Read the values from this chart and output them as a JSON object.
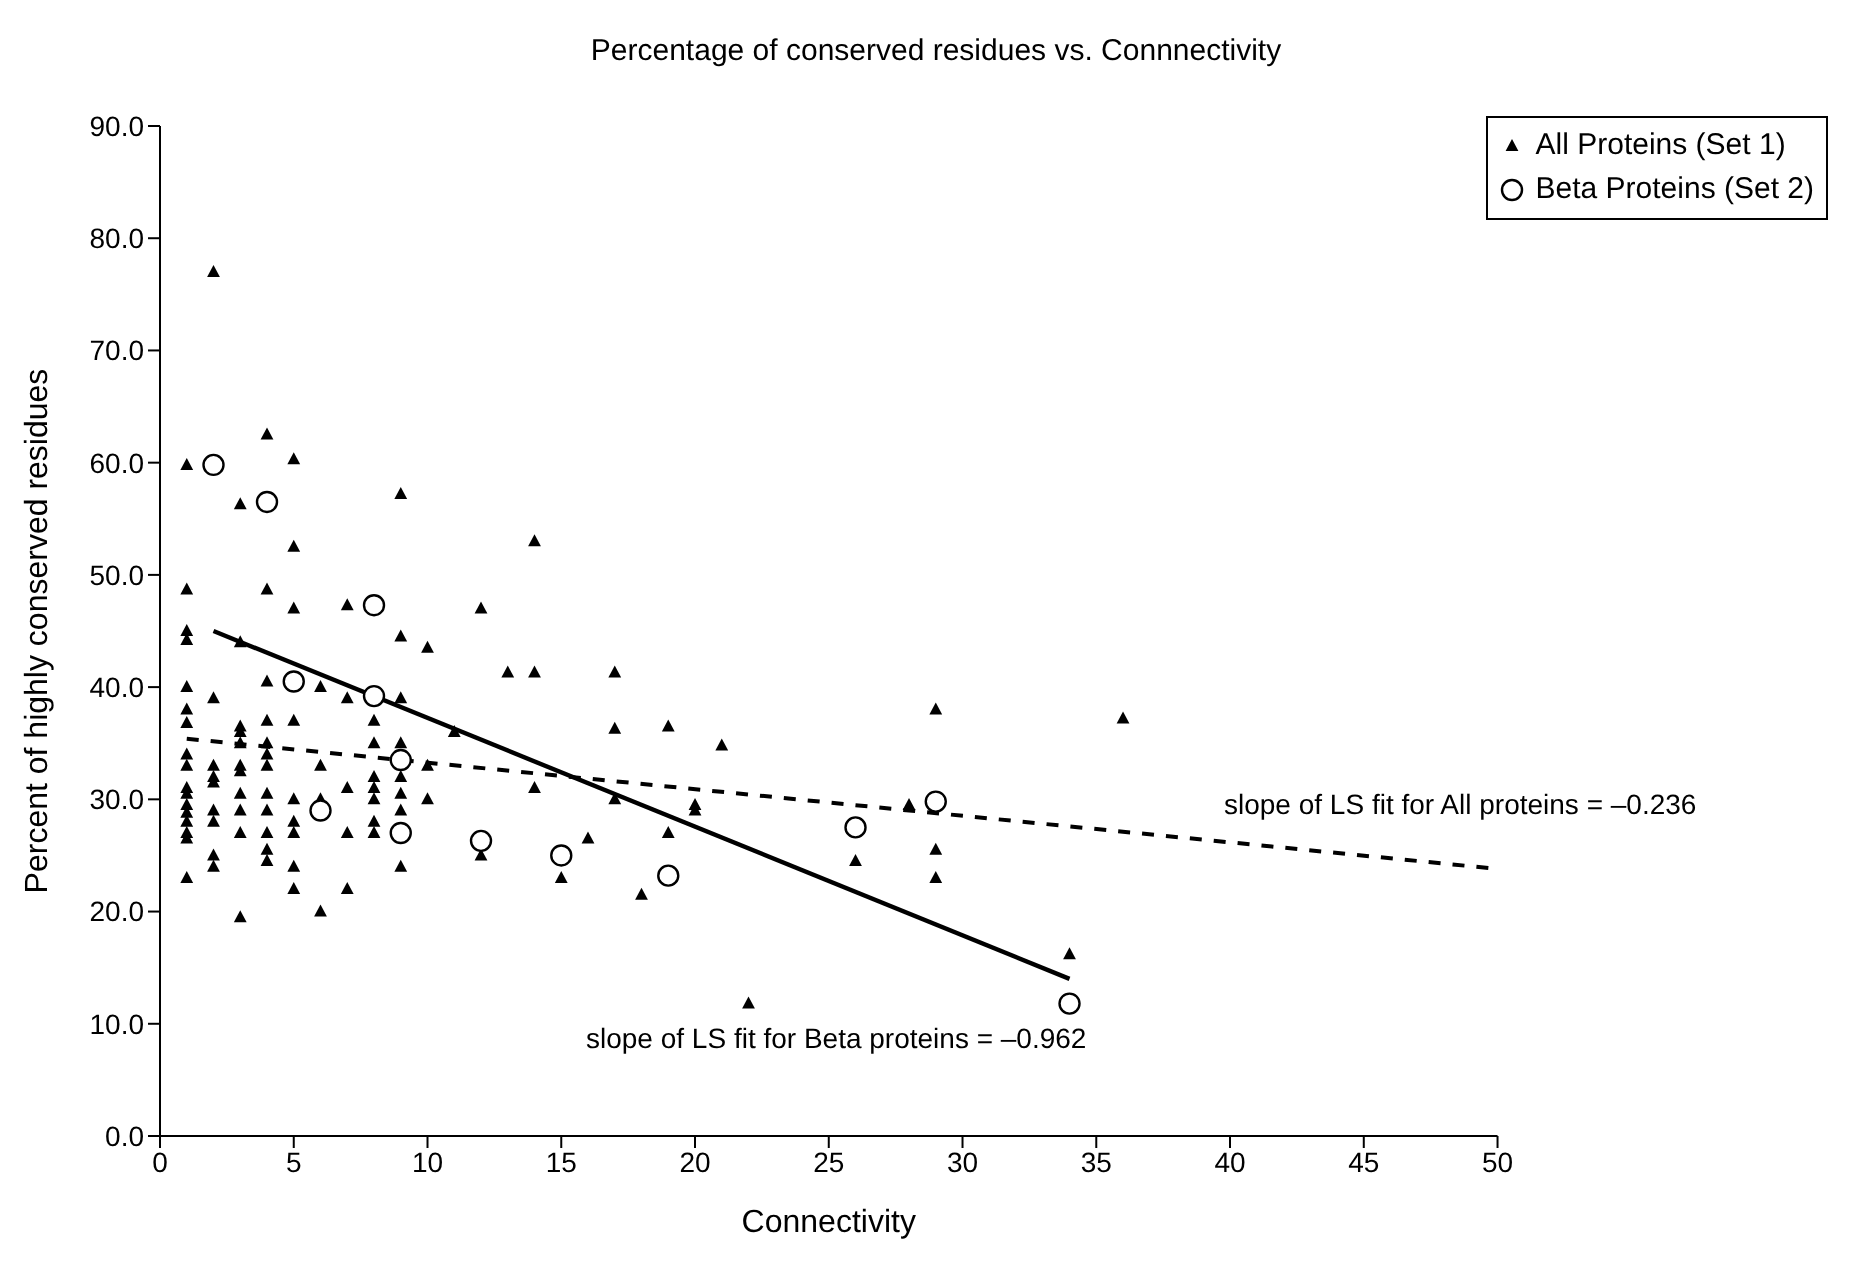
{
  "chart_data": {
    "type": "scatter",
    "title": "Percentage of conserved residues vs. Connnectivity",
    "xlabel": "Connectivity",
    "ylabel": "Percent of highly conserved residues",
    "xlim": [
      0,
      50
    ],
    "xticks": [
      0,
      5,
      10,
      15,
      20,
      25,
      30,
      35,
      40,
      45,
      50
    ],
    "ylim": [
      0,
      90
    ],
    "yticks": [
      {
        "value": 0,
        "label": "0.0"
      },
      {
        "value": 10,
        "label": "10.0"
      },
      {
        "value": 20,
        "label": "20.0"
      },
      {
        "value": 30,
        "label": "30.0"
      },
      {
        "value": 40,
        "label": "40.0"
      },
      {
        "value": 50,
        "label": "50.0"
      },
      {
        "value": 60,
        "label": "60.0"
      },
      {
        "value": 70,
        "label": "70.0"
      },
      {
        "value": 80,
        "label": "80.0"
      },
      {
        "value": 90,
        "label": "90.0"
      }
    ],
    "grid": false,
    "legend": "top right",
    "series": [
      {
        "name": "All Proteins (Set 1)",
        "color": "#000000",
        "marker": "triangle",
        "x": [
          1,
          1,
          1,
          1,
          1,
          1,
          1,
          1,
          1,
          1,
          1,
          1,
          1,
          1,
          1,
          1,
          1,
          2,
          2,
          2,
          2,
          2,
          2,
          2,
          2,
          2,
          3,
          3,
          3,
          3,
          3,
          3,
          3,
          3,
          3,
          3,
          3,
          4,
          4,
          4,
          4,
          4,
          4,
          4,
          4,
          4,
          4,
          4,
          4,
          5,
          5,
          5,
          5,
          5,
          5,
          5,
          5,
          5,
          6,
          6,
          6,
          6,
          7,
          7,
          7,
          7,
          7,
          8,
          8,
          8,
          8,
          8,
          8,
          8,
          9,
          9,
          9,
          9,
          9,
          9,
          9,
          9,
          10,
          10,
          10,
          11,
          12,
          12,
          13,
          14,
          14,
          14,
          15,
          16,
          17,
          17,
          17,
          18,
          19,
          19,
          20,
          20,
          21,
          22,
          26,
          28,
          29,
          29,
          29,
          34,
          36
        ],
        "values": [
          59.8,
          48.7,
          45,
          44.2,
          40,
          38,
          36.8,
          34,
          33,
          31,
          30.5,
          29.5,
          28.8,
          28,
          27,
          26.5,
          23,
          77,
          39,
          33,
          32,
          31.5,
          29,
          28,
          25,
          24,
          56.3,
          44,
          36.5,
          36,
          35,
          33,
          32.5,
          30.5,
          29,
          27,
          19.5,
          62.5,
          48.7,
          40.5,
          37,
          35,
          34,
          33,
          30.5,
          29,
          27,
          25.5,
          24.5,
          60.3,
          52.5,
          47,
          37,
          30,
          28,
          27,
          24,
          22,
          40,
          33,
          30,
          20,
          47.3,
          39,
          31,
          27,
          22,
          37,
          35,
          32,
          31,
          30,
          28,
          27,
          57.2,
          44.5,
          39,
          35,
          32,
          30.5,
          29,
          24,
          43.5,
          33,
          30,
          36,
          47,
          25,
          41.3,
          53,
          41.3,
          31,
          23,
          26.5,
          41.3,
          36.3,
          30,
          21.5,
          36.5,
          27,
          29.5,
          29,
          34.8,
          11.8,
          24.5,
          29.5,
          38,
          25.5,
          23,
          16.2,
          37.2
        ]
      },
      {
        "name": "Beta Proteins (Set 2)",
        "color": "#000000",
        "marker": "circle",
        "x": [
          2,
          4,
          5,
          6,
          8,
          8,
          9,
          9,
          12,
          15,
          19,
          26,
          29,
          34
        ],
        "values": [
          59.8,
          56.5,
          40.5,
          29,
          47.3,
          39.2,
          33.5,
          27,
          26.3,
          25,
          23.2,
          27.5,
          29.8,
          11.8
        ]
      },
      {
        "type": "line",
        "color": "#000000",
        "line_style": "dashed",
        "x": [
          1,
          50
        ],
        "values": [
          35.4,
          23.8
        ]
      },
      {
        "type": "line",
        "color": "#000000",
        "line_style": "solid",
        "x": [
          2,
          34
        ],
        "values": [
          45,
          14
        ]
      }
    ],
    "annotations": [
      "slope of LS fit for All proteins = –0.236",
      "slope of LS fit for Beta proteins = –0.962"
    ]
  }
}
